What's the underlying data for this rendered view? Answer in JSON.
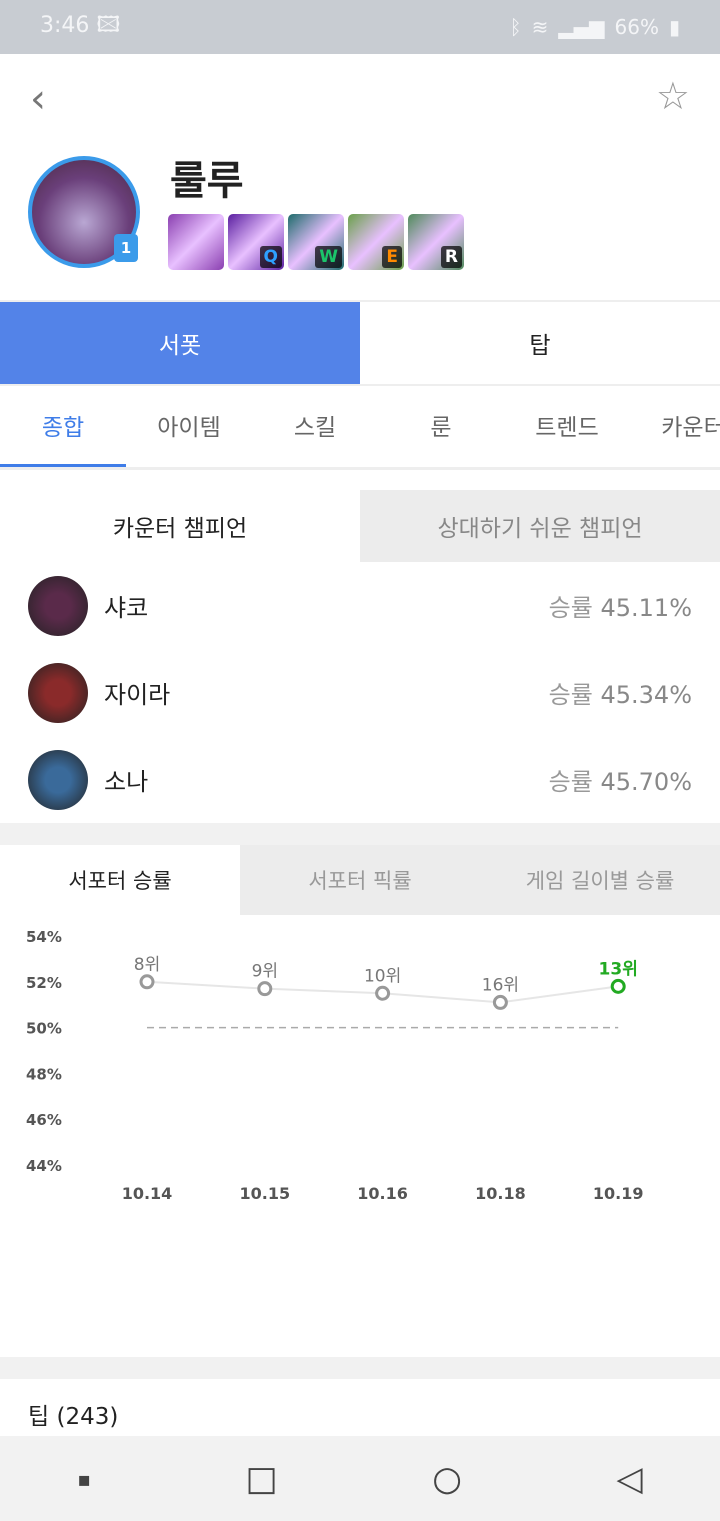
{
  "status": {
    "time": "3:46",
    "battery": "66%"
  },
  "champion": {
    "name": "룰루",
    "level_badge": "1",
    "skills": [
      {
        "key": "",
        "color": "#8a3fb0"
      },
      {
        "key": "Q",
        "color": "#5a1fa0",
        "key_color": "#2ea0ff"
      },
      {
        "key": "W",
        "color": "#1d6b6a",
        "key_color": "#1bc46a"
      },
      {
        "key": "E",
        "color": "#6aa04a",
        "key_color": "#ff8a00"
      },
      {
        "key": "R",
        "color": "#4f8a5a",
        "key_color": "#ffffff"
      }
    ]
  },
  "roles": [
    {
      "label": "서폿",
      "active": true
    },
    {
      "label": "탑",
      "active": false
    }
  ],
  "tabs": [
    "종합",
    "아이템",
    "스킬",
    "룬",
    "트렌드",
    "카운터"
  ],
  "counter_tabs": [
    "카운터 챔피언",
    "상대하기 쉬운 챔피언"
  ],
  "counters": [
    {
      "name": "샤코",
      "wr_label": "승률",
      "wr": "45.11%"
    },
    {
      "name": "자이라",
      "wr_label": "승률",
      "wr": "45.34%"
    },
    {
      "name": "소나",
      "wr_label": "승률",
      "wr": "45.70%"
    }
  ],
  "chart_tabs": [
    "서포터 승률",
    "서포터 픽률",
    "게임 길이별 승률"
  ],
  "chart_data": {
    "type": "line",
    "categories": [
      "10.14",
      "10.15",
      "10.16",
      "10.18",
      "10.19"
    ],
    "values": [
      52.0,
      51.7,
      51.5,
      51.1,
      51.8
    ],
    "ranks": [
      "8위",
      "9위",
      "10위",
      "16위",
      "13위"
    ],
    "yticks": [
      "54%",
      "52%",
      "50%",
      "48%",
      "46%",
      "44%"
    ],
    "ylim": [
      44,
      54
    ],
    "reference_line": 50,
    "highlight_color": "#22aa22",
    "point_color": "#999999"
  },
  "tips": {
    "label": "팁 (243)"
  },
  "nav": {
    "recent": "▪",
    "home": "□",
    "circle": "○",
    "back": "◁"
  }
}
